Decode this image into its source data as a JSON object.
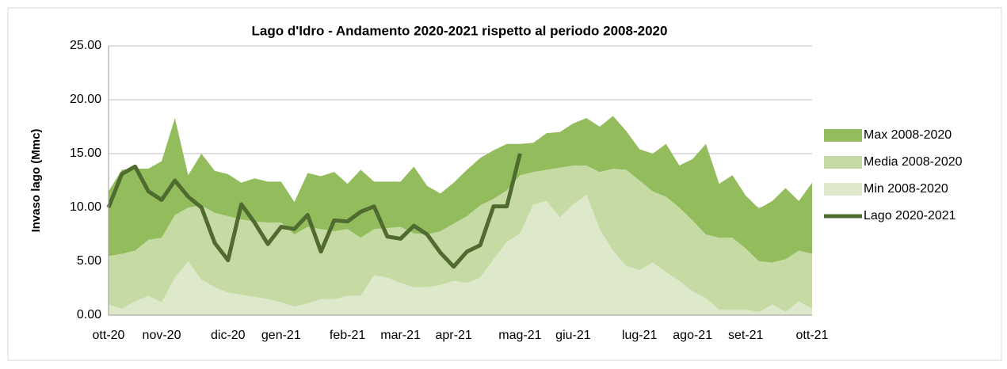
{
  "chart_data": {
    "type": "area-line",
    "title": "Lago d'Idro - Andamento 2020-2021 rispetto al periodo 2008-2020",
    "y_label": "Invaso lago (Mmc)",
    "categories": [
      "ott-20",
      null,
      null,
      null,
      "nov-20",
      null,
      null,
      null,
      null,
      "dic-20",
      null,
      null,
      null,
      "gen-21",
      null,
      null,
      null,
      null,
      "feb-21",
      null,
      null,
      null,
      "mar-21",
      null,
      null,
      null,
      "apr-21",
      null,
      null,
      null,
      null,
      "mag-21",
      null,
      null,
      null,
      "giu-21",
      null,
      null,
      null,
      null,
      "lug-21",
      null,
      null,
      null,
      "ago-21",
      null,
      null,
      null,
      "set-21",
      null,
      null,
      null,
      null,
      "ott-21"
    ],
    "series": [
      {
        "name": "Max 2008-2020",
        "kind": "area",
        "color": "#93bd5d",
        "values": [
          11.5,
          13.5,
          13.6,
          13.6,
          14.3,
          18.3,
          13.0,
          15.0,
          13.4,
          13.1,
          12.3,
          12.7,
          12.4,
          12.4,
          10.5,
          13.2,
          12.9,
          13.3,
          12.2,
          13.5,
          12.4,
          12.4,
          12.4,
          13.8,
          12.0,
          11.3,
          12.3,
          13.5,
          14.6,
          15.3,
          15.9,
          15.9,
          16.0,
          16.9,
          17.0,
          17.8,
          18.3,
          17.5,
          18.5,
          17.1,
          15.4,
          15.0,
          15.9,
          13.9,
          14.5,
          15.9,
          12.2,
          13.0,
          11.1,
          9.9,
          10.6,
          11.8,
          10.6,
          12.3
        ]
      },
      {
        "name": "Media 2008-2020",
        "kind": "area",
        "color": "#c5dba3",
        "values": [
          5.5,
          5.7,
          6.0,
          7.0,
          7.2,
          9.3,
          10.0,
          10.2,
          9.5,
          9.2,
          8.9,
          8.7,
          8.6,
          8.6,
          7.5,
          8.2,
          8.0,
          7.8,
          8.0,
          7.2,
          8.0,
          8.1,
          8.2,
          7.6,
          7.5,
          7.8,
          8.5,
          9.2,
          10.2,
          10.8,
          11.6,
          13.0,
          13.3,
          13.5,
          13.7,
          13.9,
          13.9,
          13.3,
          13.6,
          13.5,
          12.5,
          11.5,
          11.0,
          10.0,
          8.8,
          7.5,
          7.2,
          7.2,
          6.2,
          5.0,
          4.9,
          5.2,
          6.0,
          5.7
        ]
      },
      {
        "name": "Min 2008-2020",
        "kind": "area",
        "color": "#dde9ca",
        "values": [
          1.0,
          0.6,
          1.3,
          1.8,
          1.2,
          3.5,
          5.0,
          3.3,
          2.6,
          2.1,
          1.9,
          1.7,
          1.5,
          1.2,
          0.8,
          1.1,
          1.5,
          1.5,
          1.8,
          1.8,
          3.7,
          3.5,
          3.0,
          2.6,
          2.6,
          2.8,
          3.2,
          3.0,
          3.5,
          5.2,
          6.8,
          7.6,
          10.3,
          10.6,
          9.1,
          10.3,
          11.2,
          8.0,
          6.0,
          4.6,
          4.2,
          4.9,
          4.0,
          3.2,
          2.2,
          1.6,
          0.5,
          0.5,
          0.5,
          0.3,
          1.0,
          0.3,
          1.3,
          0.6
        ]
      },
      {
        "name": "Lago 2020-2021",
        "kind": "line",
        "color": "#4f6b2f",
        "values": [
          10.0,
          13.1,
          13.8,
          11.5,
          10.7,
          12.5,
          11.0,
          10.0,
          6.7,
          5.1,
          10.3,
          8.6,
          6.6,
          8.2,
          8.0,
          9.3,
          5.9,
          8.8,
          8.7,
          9.6,
          10.1,
          7.3,
          7.1,
          8.3,
          7.5,
          5.8,
          4.5,
          5.9,
          6.5,
          10.1,
          10.1,
          15.0,
          null,
          null,
          null,
          null,
          null,
          null,
          null,
          null,
          null,
          null,
          null,
          null,
          null,
          null,
          null,
          null,
          null,
          null,
          null,
          null,
          null,
          null
        ]
      }
    ],
    "ylim": [
      0,
      25
    ],
    "yticks": [
      {
        "value": 0,
        "label": "0.00"
      },
      {
        "value": 5,
        "label": "5.00"
      },
      {
        "value": 10,
        "label": "10.00"
      },
      {
        "value": 15,
        "label": "15.00"
      },
      {
        "value": 20,
        "label": "20.00"
      },
      {
        "value": 25,
        "label": "25.00"
      }
    ],
    "grid": true,
    "legend": "right"
  }
}
